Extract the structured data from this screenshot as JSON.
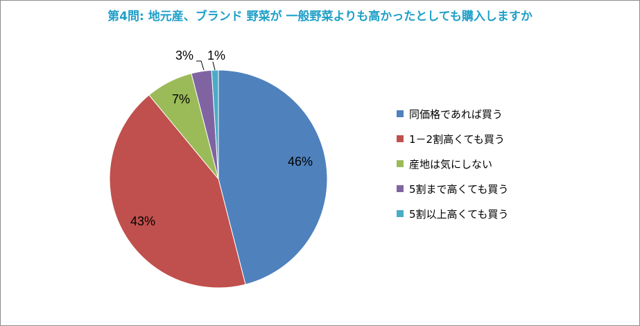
{
  "chart_data": {
    "type": "pie",
    "title": "第4問: 地元産、ブランド 野菜が 一般野菜よりも高かったとしても購入しますか",
    "start_angle_deg": 0,
    "direction": "clockwise",
    "legend_position": "right",
    "slices": [
      {
        "label": "同価格であれば買う",
        "value": 46,
        "display": "46%",
        "color": "#4f81bd"
      },
      {
        "label": "1－2割高くても買う",
        "value": 43,
        "display": "43%",
        "color": "#c0504d"
      },
      {
        "label": "産地は気にしない",
        "value": 7,
        "display": "7%",
        "color": "#9bbb59"
      },
      {
        "label": "5割まで高くても買う",
        "value": 3,
        "display": "3%",
        "color": "#8064a2"
      },
      {
        "label": "5割以上高くても買う",
        "value": 1,
        "display": "1%",
        "color": "#4bacc6"
      }
    ]
  },
  "colors": {
    "title": "#1f9fc7",
    "border": "#8c8c8c",
    "slice_stroke": "#ffffff"
  }
}
